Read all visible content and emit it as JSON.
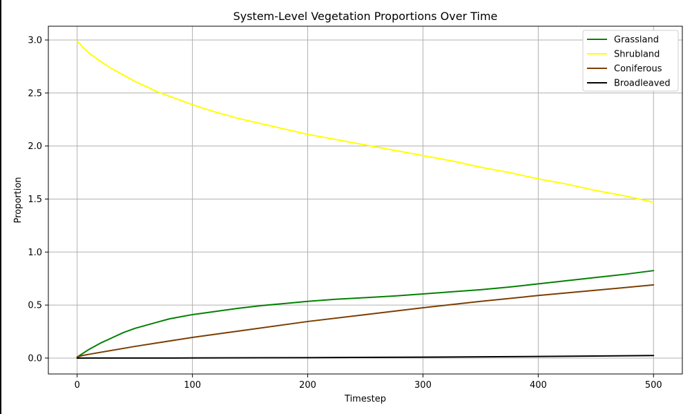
{
  "chart_data": {
    "type": "line",
    "title": "System-Level Vegetation Proportions Over Time",
    "xlabel": "Timestep",
    "ylabel": "Proportion",
    "xlim": [
      -25,
      525
    ],
    "ylim": [
      -0.15,
      3.13
    ],
    "xticks": [
      0,
      100,
      200,
      300,
      400,
      500
    ],
    "yticks": [
      0.0,
      0.5,
      1.0,
      1.5,
      2.0,
      2.5,
      3.0
    ],
    "xtick_labels": [
      "0",
      "100",
      "200",
      "300",
      "400",
      "500"
    ],
    "ytick_labels": [
      "0.0",
      "0.5",
      "1.0",
      "1.5",
      "2.0",
      "2.5",
      "3.0"
    ],
    "grid": true,
    "legend_position": "top-right",
    "series": [
      {
        "name": "Grassland",
        "color": "#008000",
        "x": [
          0,
          10,
          20,
          30,
          40,
          50,
          60,
          70,
          80,
          90,
          100,
          120,
          140,
          160,
          180,
          200,
          225,
          250,
          275,
          300,
          325,
          350,
          375,
          400,
          425,
          450,
          475,
          500
        ],
        "y": [
          0.01,
          0.08,
          0.14,
          0.19,
          0.24,
          0.28,
          0.31,
          0.34,
          0.37,
          0.39,
          0.41,
          0.44,
          0.47,
          0.495,
          0.515,
          0.535,
          0.555,
          0.57,
          0.585,
          0.605,
          0.625,
          0.645,
          0.67,
          0.7,
          0.73,
          0.76,
          0.79,
          0.825
        ]
      },
      {
        "name": "Shrubland",
        "color": "#ffff00",
        "x": [
          0,
          5,
          10,
          20,
          30,
          40,
          50,
          60,
          70,
          80,
          90,
          100,
          120,
          140,
          160,
          180,
          200,
          225,
          250,
          275,
          300,
          325,
          350,
          375,
          400,
          425,
          450,
          475,
          500
        ],
        "y": [
          2.99,
          2.93,
          2.88,
          2.8,
          2.73,
          2.67,
          2.61,
          2.56,
          2.51,
          2.47,
          2.43,
          2.39,
          2.32,
          2.26,
          2.21,
          2.16,
          2.11,
          2.06,
          2.01,
          1.96,
          1.91,
          1.86,
          1.8,
          1.75,
          1.69,
          1.64,
          1.58,
          1.53,
          1.47
        ]
      },
      {
        "name": "Coniferous",
        "color": "#7a3d00",
        "x": [
          0,
          5,
          10,
          50,
          100,
          150,
          200,
          250,
          300,
          350,
          400,
          450,
          500
        ],
        "y": [
          0.01,
          0.025,
          0.035,
          0.11,
          0.195,
          0.27,
          0.345,
          0.41,
          0.475,
          0.535,
          0.59,
          0.64,
          0.69
        ]
      },
      {
        "name": "Broadleaved",
        "color": "#000000",
        "x": [
          0,
          100,
          200,
          300,
          400,
          500
        ],
        "y": [
          0.0,
          0.001,
          0.004,
          0.009,
          0.015,
          0.024
        ]
      }
    ]
  }
}
